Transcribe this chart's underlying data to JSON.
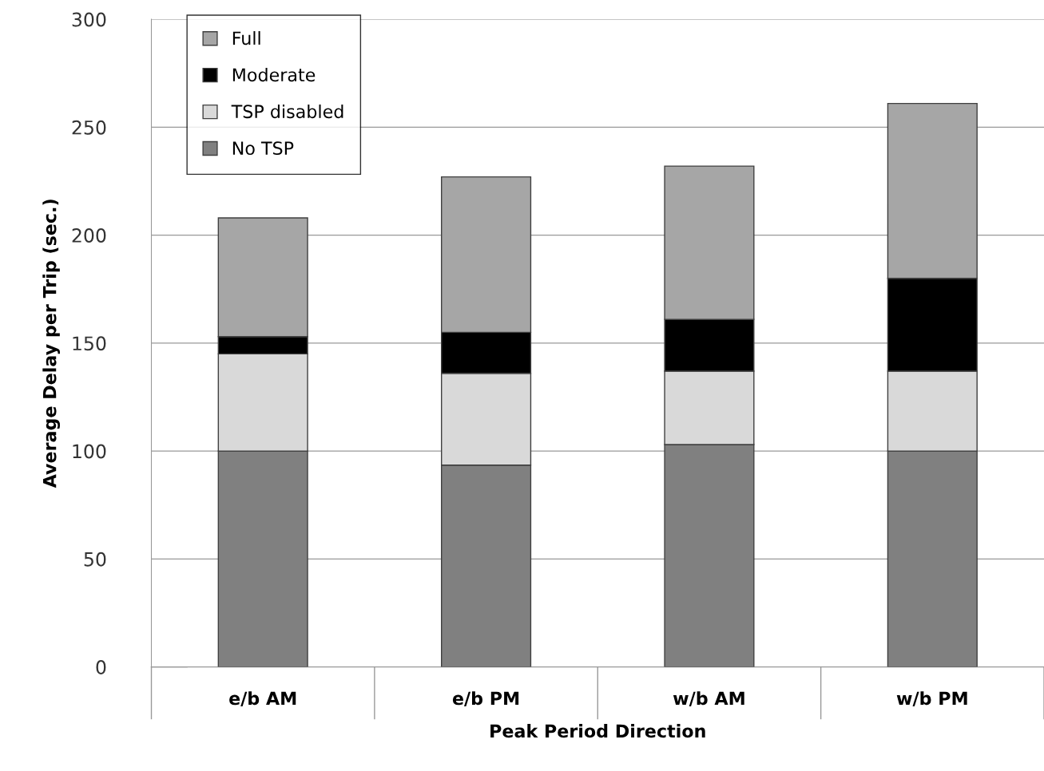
{
  "chart_data": {
    "type": "bar",
    "stacked": true,
    "xlabel": "Peak Period Direction",
    "ylabel": "Average Delay per Trip (sec.)",
    "categories": [
      "e/b AM",
      "e/b PM",
      "w/b AM",
      "w/b PM"
    ],
    "series": [
      {
        "name": "No TSP",
        "color": "#808080",
        "values": [
          100,
          93.5,
          103,
          100
        ]
      },
      {
        "name": "TSP disabled",
        "color": "#d9d9d9",
        "values": [
          45,
          42.5,
          34,
          37
        ]
      },
      {
        "name": "Moderate",
        "color": "#000000",
        "values": [
          8,
          19,
          24,
          43
        ]
      },
      {
        "name": "Full",
        "color": "#a6a6a6",
        "values": [
          55,
          72,
          71,
          81
        ]
      }
    ],
    "ylim": [
      0,
      300
    ],
    "yticks": [
      0,
      50,
      100,
      150,
      200,
      250,
      300
    ],
    "grid": "y",
    "legend": "top left"
  }
}
